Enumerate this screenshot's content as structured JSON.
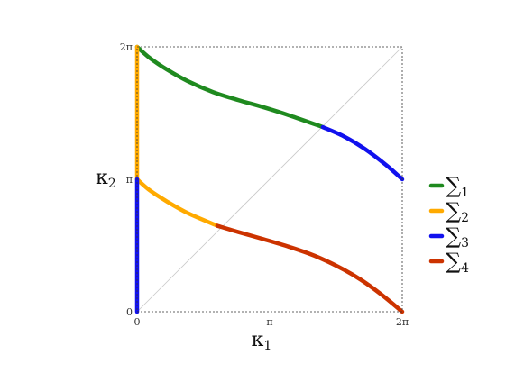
{
  "chart_data": {
    "type": "line",
    "title": "",
    "xlabel": {
      "main": "κ",
      "sub": "1"
    },
    "ylabel": {
      "main": "κ",
      "sub": "2"
    },
    "xlim": [
      0,
      6.2832
    ],
    "ylim": [
      0,
      6.2832
    ],
    "x_ticks": [
      {
        "value": 0,
        "label": "0"
      },
      {
        "value": 3.1416,
        "label": "π"
      },
      {
        "value": 6.2832,
        "label": "2π"
      }
    ],
    "y_ticks": [
      {
        "value": 0,
        "label": "0"
      },
      {
        "value": 3.1416,
        "label": "π"
      },
      {
        "value": 6.2832,
        "label": "2π"
      }
    ],
    "grid": false,
    "frame": "dashed",
    "diagonal": {
      "color": "#c8c8c8",
      "points": [
        [
          0,
          0
        ],
        [
          6.2832,
          6.2832
        ]
      ]
    },
    "legend": {
      "position": "right",
      "entries": [
        {
          "symbol": "∑",
          "sub": "1",
          "color": "#1f8a1f"
        },
        {
          "symbol": "∑",
          "sub": "2",
          "color": "#ffaa00"
        },
        {
          "symbol": "∑",
          "sub": "3",
          "color": "#1111ee"
        },
        {
          "symbol": "∑",
          "sub": "4",
          "color": "#cc3300"
        }
      ]
    },
    "series": [
      {
        "color": "#1f8a1f",
        "points": [
          [
            0,
            6.2832
          ],
          [
            0.3,
            6.02
          ],
          [
            0.7,
            5.75
          ],
          [
            1.2,
            5.47
          ],
          [
            1.8,
            5.21
          ],
          [
            2.4,
            5.02
          ],
          [
            3.0,
            4.85
          ],
          [
            3.6,
            4.66
          ],
          [
            4.4,
            4.38
          ]
        ]
      },
      {
        "color": "#1111ee",
        "points": [
          [
            4.4,
            4.38
          ],
          [
            4.9,
            4.16
          ],
          [
            5.4,
            3.86
          ],
          [
            5.9,
            3.48
          ],
          [
            6.2832,
            3.1416
          ]
        ]
      },
      {
        "color": "#ffaa00",
        "points": [
          [
            0,
            3.1416
          ],
          [
            0.3,
            2.88
          ],
          [
            0.7,
            2.62
          ],
          [
            1.2,
            2.34
          ],
          [
            1.9,
            2.04
          ]
        ]
      },
      {
        "color": "#cc3300",
        "points": [
          [
            1.9,
            2.04
          ],
          [
            2.4,
            1.89
          ],
          [
            3.0,
            1.72
          ],
          [
            3.6,
            1.54
          ],
          [
            4.2,
            1.33
          ],
          [
            4.8,
            1.05
          ],
          [
            5.3,
            0.76
          ],
          [
            5.8,
            0.4
          ],
          [
            6.2832,
            0
          ]
        ]
      },
      {
        "color": "#ffaa00",
        "points": [
          [
            0,
            3.1416
          ],
          [
            0,
            6.2832
          ]
        ]
      },
      {
        "color": "#1111ee",
        "points": [
          [
            0,
            0
          ],
          [
            0,
            3.1416
          ]
        ]
      }
    ]
  }
}
